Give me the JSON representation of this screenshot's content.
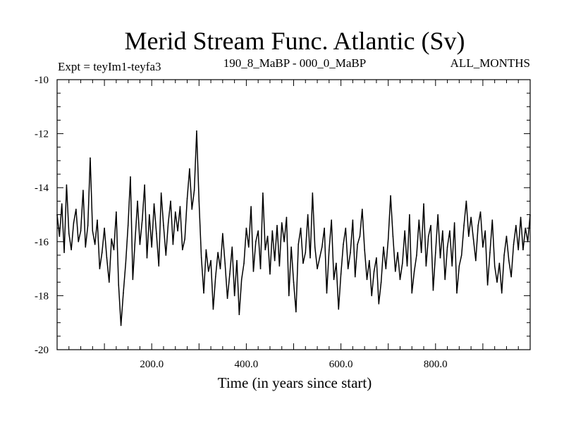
{
  "header": {
    "title": "Merid Stream Func. Atlantic (Sv)",
    "left_label": "Expt = teyIm1-teyfa3",
    "center_label": "190_8_MaBP - 000_0_MaBP",
    "right_label": "ALL_MONTHS"
  },
  "chart_data": {
    "type": "line",
    "title": "Merid Stream Func. Atlantic (Sv)",
    "xlabel": "Time (in years since start)",
    "ylabel": "",
    "xlim": [
      0,
      1000
    ],
    "ylim": [
      -20,
      -10
    ],
    "x_ticks": [
      {
        "value": 200,
        "label": "200.0"
      },
      {
        "value": 400,
        "label": "400.0"
      },
      {
        "value": 600,
        "label": "600.0"
      },
      {
        "value": 800,
        "label": "800.0"
      }
    ],
    "y_ticks": [
      {
        "value": -10,
        "label": "-10"
      },
      {
        "value": -12,
        "label": "-12"
      },
      {
        "value": -14,
        "label": "-14"
      },
      {
        "value": -16,
        "label": "-16"
      },
      {
        "value": -18,
        "label": "-18"
      },
      {
        "value": -20,
        "label": "-20"
      }
    ],
    "grid": false,
    "series": [
      {
        "color": "#000000",
        "x": [
          0,
          5,
          10,
          15,
          20,
          25,
          30,
          35,
          40,
          45,
          50,
          55,
          60,
          65,
          70,
          75,
          80,
          85,
          90,
          95,
          100,
          105,
          110,
          115,
          120,
          125,
          130,
          135,
          140,
          145,
          150,
          155,
          160,
          165,
          170,
          175,
          180,
          185,
          190,
          195,
          200,
          205,
          210,
          215,
          220,
          225,
          230,
          235,
          240,
          245,
          250,
          255,
          260,
          265,
          270,
          275,
          280,
          285,
          290,
          295,
          300,
          305,
          310,
          315,
          320,
          325,
          330,
          335,
          340,
          345,
          350,
          355,
          360,
          365,
          370,
          375,
          380,
          385,
          390,
          395,
          400,
          405,
          410,
          415,
          420,
          425,
          430,
          435,
          440,
          445,
          450,
          455,
          460,
          465,
          470,
          475,
          480,
          485,
          490,
          495,
          500,
          505,
          510,
          515,
          520,
          525,
          530,
          535,
          540,
          545,
          550,
          555,
          560,
          565,
          570,
          575,
          580,
          585,
          590,
          595,
          600,
          605,
          610,
          615,
          620,
          625,
          630,
          635,
          640,
          645,
          650,
          655,
          660,
          665,
          670,
          675,
          680,
          685,
          690,
          695,
          700,
          705,
          710,
          715,
          720,
          725,
          730,
          735,
          740,
          745,
          750,
          755,
          760,
          765,
          770,
          775,
          780,
          785,
          790,
          795,
          800,
          805,
          810,
          815,
          820,
          825,
          830,
          835,
          840,
          845,
          850,
          855,
          860,
          865,
          870,
          875,
          880,
          885,
          890,
          895,
          900,
          905,
          910,
          915,
          920,
          925,
          930,
          935,
          940,
          945,
          950,
          955,
          960,
          965,
          970,
          975,
          980,
          985,
          990,
          995,
          1000
        ],
        "values": [
          -15.0,
          -15.8,
          -14.6,
          -16.4,
          -13.9,
          -15.7,
          -16.3,
          -15.3,
          -14.8,
          -16.0,
          -15.6,
          -14.1,
          -16.2,
          -15.4,
          -12.9,
          -15.6,
          -16.1,
          -15.2,
          -17.0,
          -16.4,
          -15.5,
          -16.6,
          -17.5,
          -15.9,
          -16.3,
          -14.9,
          -17.6,
          -19.1,
          -17.9,
          -16.8,
          -15.4,
          -13.6,
          -17.4,
          -15.9,
          -14.5,
          -16.1,
          -15.2,
          -13.9,
          -16.6,
          -15.0,
          -16.2,
          -14.6,
          -15.7,
          -16.9,
          -14.2,
          -15.4,
          -16.5,
          -15.3,
          -14.5,
          -16.1,
          -14.9,
          -15.6,
          -14.7,
          -16.3,
          -15.9,
          -14.4,
          -13.3,
          -14.8,
          -14.1,
          -11.9,
          -14.5,
          -16.6,
          -17.9,
          -16.3,
          -17.1,
          -16.7,
          -18.5,
          -17.3,
          -16.4,
          -17.0,
          -15.7,
          -16.8,
          -18.1,
          -17.2,
          -16.2,
          -18.0,
          -16.7,
          -18.7,
          -17.4,
          -16.8,
          -15.5,
          -16.2,
          -14.7,
          -17.1,
          -16.0,
          -15.6,
          -17.0,
          -14.2,
          -16.3,
          -15.8,
          -17.2,
          -15.6,
          -16.7,
          -15.4,
          -16.9,
          -15.3,
          -16.0,
          -15.1,
          -18.0,
          -16.2,
          -17.5,
          -18.6,
          -16.1,
          -15.5,
          -16.8,
          -16.4,
          -15.0,
          -16.6,
          -14.2,
          -16.2,
          -17.0,
          -16.6,
          -16.2,
          -15.5,
          -17.9,
          -16.3,
          -15.2,
          -17.4,
          -16.8,
          -18.5,
          -17.2,
          -16.1,
          -15.5,
          -17.0,
          -16.4,
          -15.2,
          -17.3,
          -16.1,
          -15.8,
          -14.8,
          -16.3,
          -17.4,
          -16.7,
          -18.0,
          -17.1,
          -16.6,
          -18.3,
          -17.5,
          -16.2,
          -17.0,
          -15.9,
          -14.3,
          -15.8,
          -17.1,
          -16.4,
          -17.4,
          -16.8,
          -15.6,
          -16.9,
          -15.0,
          -17.9,
          -17.1,
          -16.5,
          -15.2,
          -16.4,
          -14.6,
          -16.9,
          -15.8,
          -15.4,
          -17.8,
          -16.4,
          -15.0,
          -16.6,
          -15.6,
          -17.4,
          -16.2,
          -15.6,
          -16.9,
          -15.3,
          -17.9,
          -16.9,
          -16.5,
          -15.4,
          -14.5,
          -15.8,
          -15.1,
          -15.9,
          -16.7,
          -15.4,
          -14.9,
          -16.2,
          -15.6,
          -17.6,
          -16.4,
          -15.2,
          -16.9,
          -17.5,
          -16.8,
          -17.9,
          -16.5,
          -15.8,
          -16.7,
          -17.3,
          -16.1,
          -15.4,
          -16.3,
          -15.1,
          -16.3,
          -15.5,
          -16.0,
          -15.0
        ]
      }
    ]
  }
}
